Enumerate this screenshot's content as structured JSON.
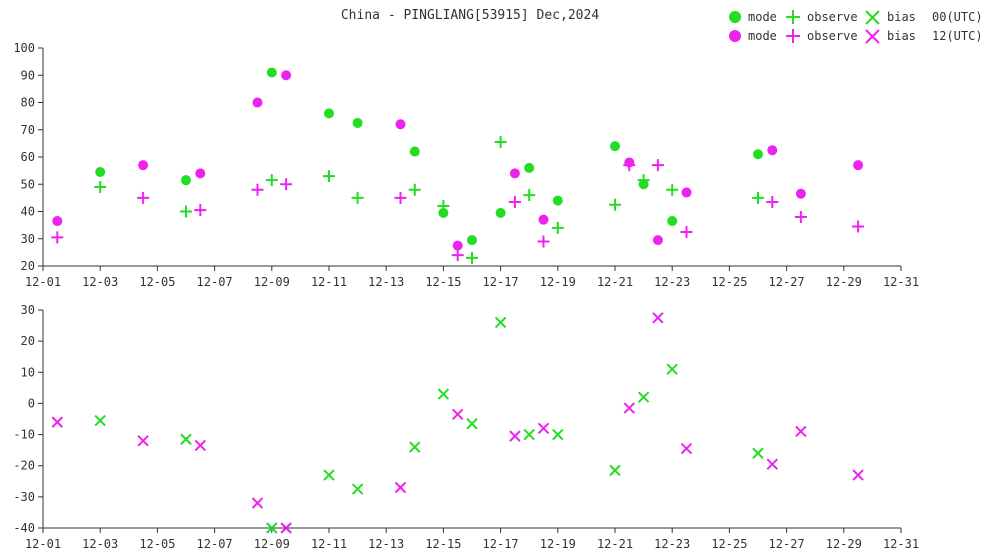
{
  "chart_data": [
    {
      "type": "scatter",
      "title": "China - PINGLIANG[53915] Dec,2024",
      "xlabel": "",
      "ylabel": "",
      "ylim": [
        20,
        100
      ],
      "yticks": [
        20,
        30,
        40,
        50,
        60,
        70,
        80,
        90,
        100
      ],
      "x_tick_labels": [
        "12-01",
        "12-03",
        "12-05",
        "12-07",
        "12-09",
        "12-11",
        "12-13",
        "12-15",
        "12-17",
        "12-19",
        "12-21",
        "12-23",
        "12-25",
        "12-27",
        "12-29",
        "12-31"
      ],
      "x_tick_days": [
        1,
        3,
        5,
        7,
        9,
        11,
        13,
        15,
        17,
        19,
        21,
        23,
        25,
        27,
        29,
        31
      ],
      "xlim": [
        1,
        31
      ],
      "grid": false,
      "series": [
        {
          "name": "mode",
          "run": "00(UTC)",
          "marker": "dot",
          "color": "#22dd22",
          "points": [
            [
              3,
              54.5
            ],
            [
              6,
              51.5
            ],
            [
              9,
              91
            ],
            [
              11,
              76
            ],
            [
              12,
              72.5
            ],
            [
              14,
              62
            ],
            [
              15,
              39.5
            ],
            [
              16,
              29.5
            ],
            [
              17,
              39.5
            ],
            [
              18,
              56
            ],
            [
              19,
              44
            ],
            [
              21,
              64
            ],
            [
              22,
              50
            ],
            [
              23,
              36.5
            ],
            [
              26,
              61
            ]
          ]
        },
        {
          "name": "observe",
          "run": "00(UTC)",
          "marker": "plus",
          "color": "#22dd22",
          "points": [
            [
              3,
              49
            ],
            [
              6,
              40
            ],
            [
              9,
              51.5
            ],
            [
              11,
              53
            ],
            [
              12,
              45
            ],
            [
              14,
              48
            ],
            [
              15,
              42
            ],
            [
              16,
              23
            ],
            [
              17,
              65.5
            ],
            [
              18,
              46
            ],
            [
              19,
              34
            ],
            [
              21,
              42.5
            ],
            [
              22,
              51.5
            ],
            [
              23,
              48
            ],
            [
              26,
              45
            ]
          ]
        },
        {
          "name": "mode",
          "run": "12(UTC)",
          "marker": "dot",
          "color": "#ee22ee",
          "points": [
            [
              1.5,
              36.5
            ],
            [
              4.5,
              57
            ],
            [
              6.5,
              54
            ],
            [
              8.5,
              80
            ],
            [
              9.5,
              90
            ],
            [
              13.5,
              72
            ],
            [
              15.5,
              27.5
            ],
            [
              17.5,
              54
            ],
            [
              18.5,
              37
            ],
            [
              21.5,
              58
            ],
            [
              22.5,
              29.5
            ],
            [
              23.5,
              47
            ],
            [
              26.5,
              62.5
            ],
            [
              27.5,
              46.5
            ],
            [
              29.5,
              57
            ]
          ]
        },
        {
          "name": "observe",
          "run": "12(UTC)",
          "marker": "plus",
          "color": "#ee22ee",
          "points": [
            [
              1.5,
              30.5
            ],
            [
              4.5,
              45
            ],
            [
              6.5,
              40.5
            ],
            [
              8.5,
              48
            ],
            [
              9.5,
              50
            ],
            [
              13.5,
              45
            ],
            [
              15.5,
              24
            ],
            [
              17.5,
              43.5
            ],
            [
              18.5,
              29
            ],
            [
              21.5,
              57
            ],
            [
              22.5,
              57
            ],
            [
              23.5,
              32.5
            ],
            [
              26.5,
              43.5
            ],
            [
              27.5,
              38
            ],
            [
              29.5,
              34.5
            ]
          ]
        }
      ]
    },
    {
      "type": "scatter",
      "xlabel": "",
      "ylabel": "",
      "ylim": [
        -40,
        30
      ],
      "yticks": [
        -40,
        -30,
        -20,
        -10,
        0,
        10,
        20,
        30
      ],
      "x_tick_labels": [
        "12-01",
        "12-03",
        "12-05",
        "12-07",
        "12-09",
        "12-11",
        "12-13",
        "12-15",
        "12-17",
        "12-19",
        "12-21",
        "12-23",
        "12-25",
        "12-27",
        "12-29",
        "12-31"
      ],
      "x_tick_days": [
        1,
        3,
        5,
        7,
        9,
        11,
        13,
        15,
        17,
        19,
        21,
        23,
        25,
        27,
        29,
        31
      ],
      "xlim": [
        1,
        31
      ],
      "grid": false,
      "series": [
        {
          "name": "bias",
          "run": "00(UTC)",
          "marker": "x",
          "color": "#22dd22",
          "points": [
            [
              3,
              -5.5
            ],
            [
              6,
              -11.5
            ],
            [
              9,
              -40
            ],
            [
              11,
              -23
            ],
            [
              12,
              -27.5
            ],
            [
              14,
              -14
            ],
            [
              15,
              3
            ],
            [
              16,
              -6.5
            ],
            [
              17,
              26
            ],
            [
              18,
              -10
            ],
            [
              19,
              -10
            ],
            [
              21,
              -21.5
            ],
            [
              22,
              2
            ],
            [
              23,
              11
            ],
            [
              26,
              -16
            ]
          ]
        },
        {
          "name": "bias",
          "run": "12(UTC)",
          "marker": "x",
          "color": "#ee22ee",
          "points": [
            [
              1.5,
              -6
            ],
            [
              4.5,
              -12
            ],
            [
              6.5,
              -13.5
            ],
            [
              8.5,
              -32
            ],
            [
              9.5,
              -40
            ],
            [
              13.5,
              -27
            ],
            [
              15.5,
              -3.5
            ],
            [
              17.5,
              -10.5
            ],
            [
              18.5,
              -8
            ],
            [
              21.5,
              -1.5
            ],
            [
              22.5,
              27.5
            ],
            [
              23.5,
              -14.5
            ],
            [
              26.5,
              -19.5
            ],
            [
              27.5,
              -9
            ],
            [
              29.5,
              -23
            ]
          ]
        }
      ]
    }
  ],
  "legend": {
    "placement": "top-right",
    "rows": [
      {
        "color": "#22dd22",
        "mode": "mode",
        "observe": "observe",
        "bias": "bias",
        "run": "00(UTC)"
      },
      {
        "color": "#ee22ee",
        "mode": "mode",
        "observe": "observe",
        "bias": "bias",
        "run": "12(UTC)"
      }
    ]
  }
}
